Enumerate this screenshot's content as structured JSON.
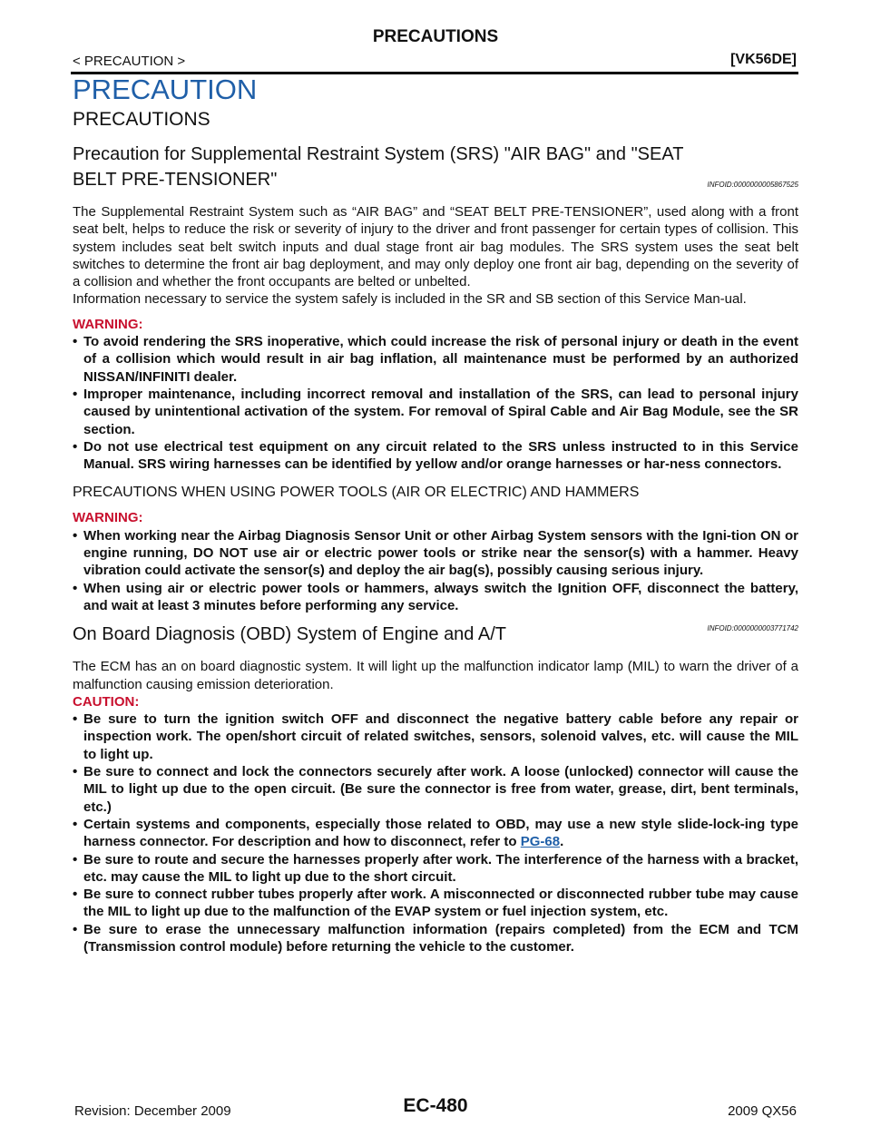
{
  "header": {
    "title": "PRECAUTIONS",
    "breadcrumb": "< PRECAUTION >",
    "model": "[VK56DE]"
  },
  "heading": "PRECAUTION",
  "subheading": "PRECAUTIONS",
  "sections": [
    {
      "title": "Precaution for Supplemental Restraint System (SRS) \"AIR BAG\" and \"SEAT BELT PRE-TENSIONER\"",
      "infoid": "INFOID:0000000005867525",
      "paragraphs": [
        "The Supplemental Restraint System such as “AIR BAG” and “SEAT BELT PRE-TENSIONER”, used along with a front seat belt, helps to reduce the risk or severity of injury to the driver and front passenger for certain types of collision. This system includes seat belt switch inputs and dual stage front air bag modules. The SRS system uses the seat belt switches to determine the front air bag deployment, and may only deploy one front air bag, depending on the severity of a collision and whether the front occupants are belted or unbelted.",
        "Information necessary to service the system safely is included in the SR and SB section of this Service Man-ual."
      ],
      "warning": "WARNING:",
      "bullets": [
        "To avoid rendering the SRS inoperative, which could increase the risk of personal injury or death in the event of a collision which would result in air bag inflation, all maintenance must be performed by an authorized NISSAN/INFINITI dealer.",
        "Improper maintenance, including incorrect removal and installation of the SRS, can lead to personal injury caused by unintentional activation of the system. For removal of Spiral Cable and Air Bag Module, see the SR section.",
        "Do not use electrical test equipment on any circuit related to the SRS unless instructed to in this Service Manual. SRS wiring harnesses can be identified by yellow and/or orange harnesses or har-ness connectors."
      ],
      "subsection": {
        "title": "PRECAUTIONS WHEN USING POWER TOOLS (AIR OR ELECTRIC) AND HAMMERS",
        "warning": "WARNING:",
        "bullets": [
          "When working near the Airbag Diagnosis Sensor Unit or other Airbag System sensors with the Igni-tion ON or engine running, DO NOT use air or electric power tools or strike near the sensor(s) with a hammer. Heavy vibration could activate the sensor(s) and deploy the air bag(s), possibly causing serious injury.",
          "When using air or electric power tools or hammers, always switch the Ignition OFF, disconnect the battery, and wait at least 3 minutes before performing any service."
        ]
      }
    },
    {
      "title": "On Board Diagnosis (OBD) System of Engine and A/T",
      "infoid": "INFOID:0000000003771742",
      "paragraphs": [
        "The ECM has an on board diagnostic system. It will light up the malfunction indicator lamp (MIL) to warn the driver of a malfunction causing emission deterioration."
      ],
      "caution": "CAUTION:",
      "bullets": [
        "Be sure to turn the ignition switch OFF and disconnect the negative battery cable before any repair or inspection work. The open/short circuit of related switches, sensors, solenoid valves, etc. will cause the MIL to light up.",
        "Be sure to connect and lock the connectors securely after work. A loose (unlocked) connector will cause the MIL to light up due to the open circuit. (Be sure the connector is free from water, grease, dirt, bent terminals, etc.)",
        {
          "text": "Certain systems and components, especially those related to OBD, may use a new style slide-lock-ing type harness connector. For description and how to disconnect, refer to ",
          "link": "PG-68",
          "after": "."
        },
        "Be sure to route and secure the harnesses properly after work. The interference of the harness with a bracket, etc. may cause the MIL to light up due to the short circuit.",
        "Be sure to connect rubber tubes properly after work. A misconnected or disconnected rubber tube may cause the MIL to light up due to the malfunction of the EVAP system or fuel injection system, etc.",
        "Be sure to erase the unnecessary malfunction information (repairs completed) from the ECM and TCM (Transmission control module) before returning the vehicle to the customer."
      ]
    }
  ],
  "footer": {
    "page": "EC-480",
    "revision": "Revision: December 2009",
    "model_year": "2009 QX56"
  }
}
